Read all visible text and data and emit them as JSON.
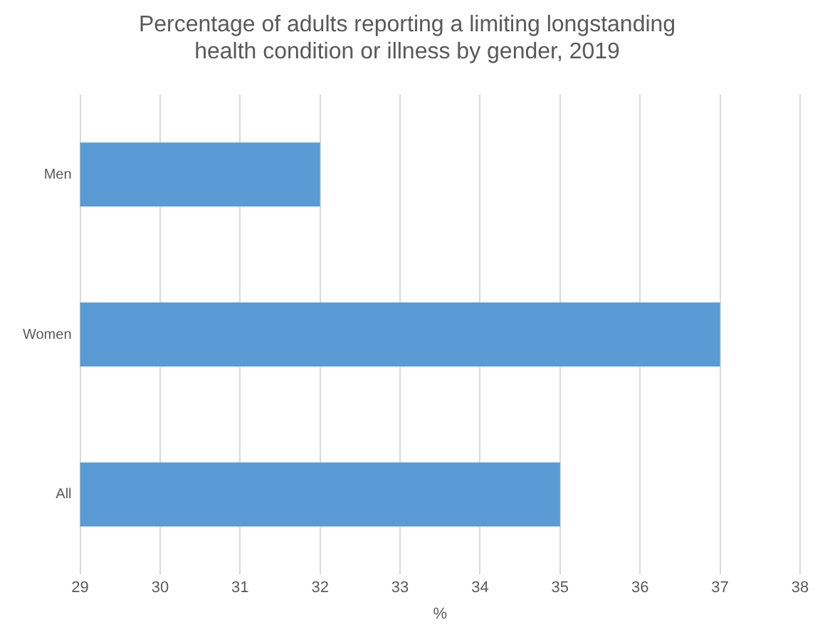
{
  "chart_data": {
    "type": "bar",
    "orientation": "horizontal",
    "title": "Percentage of adults reporting a limiting longstanding health condition or illness by gender, 2019",
    "xlabel": "%",
    "categories": [
      "Men",
      "Women",
      "All"
    ],
    "values": [
      32,
      37,
      35
    ],
    "color": "#5b9bd5",
    "xlim": [
      29,
      38
    ],
    "xticks": [
      29,
      30,
      31,
      32,
      33,
      34,
      35,
      36,
      37,
      38
    ],
    "grid": "x"
  }
}
